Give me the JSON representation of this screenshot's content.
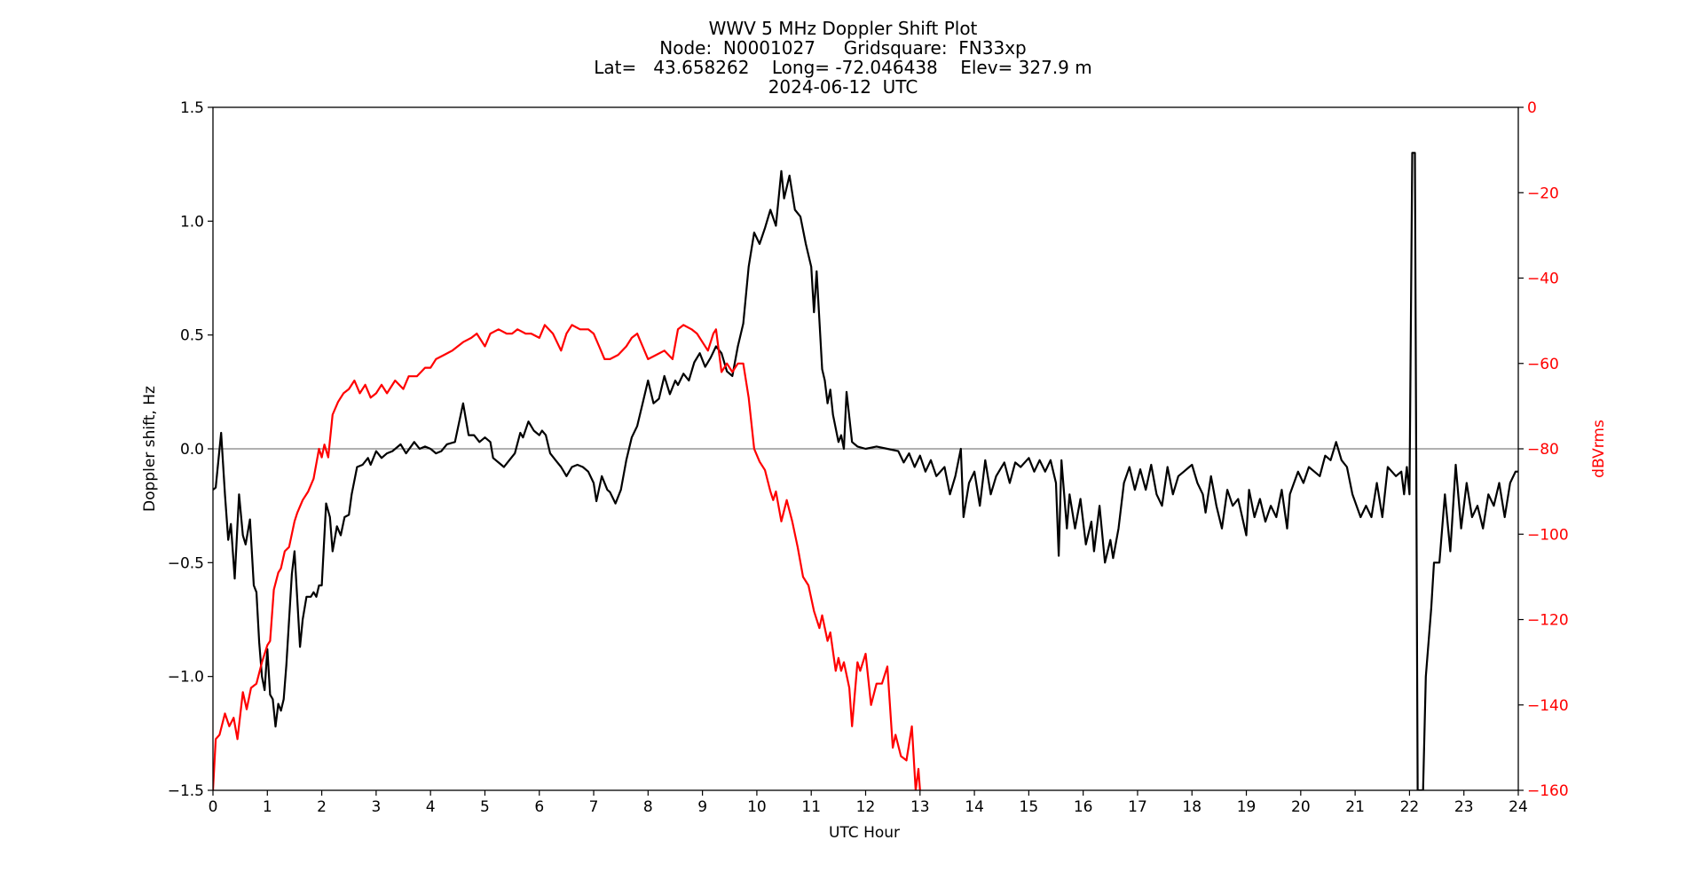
{
  "title": {
    "line1": "WWV 5 MHz Doppler Shift Plot",
    "line2": "Node:  N0001027     Gridsquare:  FN33xp",
    "line3": "Lat=   43.658262    Long= -72.046438    Elev= 327.9 m",
    "line4": "2024-06-12  UTC"
  },
  "axes": {
    "xlabel": "UTC Hour",
    "ylabel_left": "Doppler shift, Hz",
    "ylabel_right": "dBVrms",
    "right_color": "#ff0000",
    "left_color": "#000000",
    "zero_line_color": "#808080"
  },
  "chart_data": {
    "type": "line",
    "title": "WWV 5 MHz Doppler Shift Plot — Node: N0001027  Gridsquare: FN33xp  Lat= 43.658262  Long= -72.046438  Elev= 327.9 m  2024-06-12 UTC",
    "xlabel": "UTC Hour",
    "ylabel": "Doppler shift, Hz",
    "y2label": "dBVrms",
    "xlim": [
      0,
      24
    ],
    "ylim": [
      -1.5,
      1.5
    ],
    "y2lim": [
      -160,
      0
    ],
    "xticks": [
      "0",
      "1",
      "2",
      "3",
      "4",
      "5",
      "6",
      "7",
      "8",
      "9",
      "10",
      "11",
      "12",
      "13",
      "14",
      "15",
      "16",
      "17",
      "18",
      "19",
      "20",
      "21",
      "22",
      "23",
      "24"
    ],
    "yticks": [
      "1.5",
      "1.0",
      "0.5",
      "0.0",
      "−0.5",
      "−1.0",
      "−1.5"
    ],
    "ytick_values": [
      1.5,
      1.0,
      0.5,
      0.0,
      -0.5,
      -1.0,
      -1.5
    ],
    "y2ticks": [
      "0",
      "−20",
      "−40",
      "−60",
      "−80",
      "−100",
      "−120",
      "−140",
      "−160"
    ],
    "y2tick_values": [
      0,
      -20,
      -40,
      -60,
      -80,
      -100,
      -120,
      -140,
      -160
    ],
    "grid": false,
    "legend": null,
    "hline": {
      "y": 0.0,
      "color": "#808080"
    },
    "series": [
      {
        "name": "Doppler shift, Hz",
        "axis": "left",
        "color": "#000000",
        "x": [
          0.0,
          0.05,
          0.15,
          0.22,
          0.28,
          0.33,
          0.4,
          0.48,
          0.55,
          0.6,
          0.68,
          0.75,
          0.8,
          0.85,
          0.9,
          0.95,
          1.0,
          1.05,
          1.1,
          1.15,
          1.2,
          1.25,
          1.3,
          1.35,
          1.45,
          1.5,
          1.6,
          1.65,
          1.72,
          1.8,
          1.85,
          1.9,
          1.95,
          2.0,
          2.08,
          2.15,
          2.2,
          2.28,
          2.35,
          2.42,
          2.5,
          2.55,
          2.65,
          2.75,
          2.85,
          2.9,
          3.0,
          3.1,
          3.2,
          3.3,
          3.45,
          3.55,
          3.7,
          3.8,
          3.9,
          4.0,
          4.1,
          4.2,
          4.3,
          4.45,
          4.6,
          4.7,
          4.8,
          4.9,
          5.0,
          5.1,
          5.15,
          5.25,
          5.35,
          5.45,
          5.55,
          5.65,
          5.7,
          5.8,
          5.9,
          6.0,
          6.05,
          6.12,
          6.2,
          6.3,
          6.4,
          6.5,
          6.6,
          6.7,
          6.8,
          6.9,
          7.0,
          7.05,
          7.15,
          7.25,
          7.3,
          7.4,
          7.5,
          7.6,
          7.7,
          7.8,
          7.9,
          8.0,
          8.1,
          8.2,
          8.3,
          8.4,
          8.5,
          8.55,
          8.65,
          8.75,
          8.85,
          8.95,
          9.05,
          9.15,
          9.25,
          9.35,
          9.45,
          9.55,
          9.65,
          9.75,
          9.85,
          9.95,
          10.05,
          10.15,
          10.25,
          10.35,
          10.45,
          10.5,
          10.6,
          10.7,
          10.8,
          10.9,
          11.0,
          11.05,
          11.1,
          11.2,
          11.25,
          11.3,
          11.35,
          11.4,
          11.5,
          11.55,
          11.6,
          11.65,
          11.75,
          11.85,
          12.0,
          12.2,
          12.4,
          12.6,
          12.7,
          12.8,
          12.9,
          13.0,
          13.1,
          13.2,
          13.3,
          13.45,
          13.55,
          13.65,
          13.75,
          13.8,
          13.9,
          14.0,
          14.1,
          14.2,
          14.3,
          14.4,
          14.55,
          14.65,
          14.75,
          14.85,
          15.0,
          15.1,
          15.2,
          15.3,
          15.4,
          15.5,
          15.55,
          15.6,
          15.7,
          15.75,
          15.85,
          15.95,
          16.05,
          16.15,
          16.2,
          16.3,
          16.4,
          16.5,
          16.55,
          16.65,
          16.75,
          16.85,
          16.95,
          17.05,
          17.15,
          17.25,
          17.35,
          17.45,
          17.55,
          17.65,
          17.75,
          17.85,
          17.95,
          18.0,
          18.1,
          18.2,
          18.25,
          18.35,
          18.45,
          18.55,
          18.65,
          18.75,
          18.85,
          19.0,
          19.05,
          19.15,
          19.25,
          19.35,
          19.45,
          19.55,
          19.65,
          19.75,
          19.8,
          19.95,
          20.05,
          20.15,
          20.25,
          20.35,
          20.45,
          20.55,
          20.65,
          20.75,
          20.85,
          20.95,
          21.1,
          21.2,
          21.3,
          21.4,
          21.5,
          21.6,
          21.75,
          21.85,
          21.9,
          21.95,
          22.0,
          22.05,
          22.1,
          22.15,
          22.25,
          22.3,
          22.4,
          22.45,
          22.55,
          22.65,
          22.75,
          22.85,
          22.95,
          23.05,
          23.15,
          23.25,
          23.35,
          23.45,
          23.55,
          23.65,
          23.75,
          23.85,
          23.95,
          24.0
        ],
        "values": [
          -0.18,
          -0.17,
          0.07,
          -0.2,
          -0.4,
          -0.33,
          -0.57,
          -0.2,
          -0.38,
          -0.42,
          -0.31,
          -0.6,
          -0.63,
          -0.85,
          -1.0,
          -1.06,
          -0.88,
          -1.08,
          -1.1,
          -1.22,
          -1.12,
          -1.15,
          -1.1,
          -0.95,
          -0.55,
          -0.45,
          -0.87,
          -0.75,
          -0.65,
          -0.65,
          -0.63,
          -0.65,
          -0.6,
          -0.6,
          -0.24,
          -0.3,
          -0.45,
          -0.34,
          -0.38,
          -0.3,
          -0.29,
          -0.2,
          -0.08,
          -0.07,
          -0.04,
          -0.07,
          -0.01,
          -0.04,
          -0.02,
          -0.01,
          0.02,
          -0.02,
          0.03,
          0.0,
          0.01,
          0.0,
          -0.02,
          -0.01,
          0.02,
          0.03,
          0.2,
          0.06,
          0.06,
          0.03,
          0.05,
          0.03,
          -0.04,
          -0.06,
          -0.08,
          -0.05,
          -0.02,
          0.07,
          0.05,
          0.12,
          0.08,
          0.06,
          0.08,
          0.06,
          -0.02,
          -0.05,
          -0.08,
          -0.12,
          -0.08,
          -0.07,
          -0.08,
          -0.1,
          -0.15,
          -0.23,
          -0.12,
          -0.18,
          -0.19,
          -0.24,
          -0.18,
          -0.05,
          0.05,
          0.1,
          0.2,
          0.3,
          0.2,
          0.22,
          0.32,
          0.24,
          0.3,
          0.28,
          0.33,
          0.3,
          0.38,
          0.42,
          0.36,
          0.4,
          0.45,
          0.42,
          0.34,
          0.32,
          0.45,
          0.55,
          0.8,
          0.95,
          0.9,
          0.97,
          1.05,
          0.98,
          1.22,
          1.1,
          1.2,
          1.05,
          1.02,
          0.9,
          0.8,
          0.6,
          0.78,
          0.35,
          0.3,
          0.2,
          0.26,
          0.15,
          0.03,
          0.06,
          0.0,
          0.25,
          0.03,
          0.01,
          0.0,
          0.01,
          0.0,
          -0.01,
          -0.06,
          -0.02,
          -0.08,
          -0.03,
          -0.1,
          -0.05,
          -0.12,
          -0.08,
          -0.2,
          -0.12,
          0.0,
          -0.3,
          -0.15,
          -0.1,
          -0.25,
          -0.05,
          -0.2,
          -0.12,
          -0.06,
          -0.15,
          -0.06,
          -0.08,
          -0.04,
          -0.1,
          -0.05,
          -0.1,
          -0.05,
          -0.15,
          -0.47,
          -0.05,
          -0.35,
          -0.2,
          -0.35,
          -0.22,
          -0.42,
          -0.32,
          -0.45,
          -0.25,
          -0.5,
          -0.4,
          -0.48,
          -0.35,
          -0.15,
          -0.08,
          -0.18,
          -0.09,
          -0.18,
          -0.07,
          -0.2,
          -0.25,
          -0.08,
          -0.2,
          -0.12,
          -0.1,
          -0.08,
          -0.07,
          -0.15,
          -0.2,
          -0.28,
          -0.12,
          -0.25,
          -0.35,
          -0.18,
          -0.25,
          -0.22,
          -0.38,
          -0.18,
          -0.3,
          -0.22,
          -0.32,
          -0.25,
          -0.3,
          -0.18,
          -0.35,
          -0.2,
          -0.1,
          -0.15,
          -0.08,
          -0.1,
          -0.12,
          -0.03,
          -0.05,
          0.03,
          -0.05,
          -0.08,
          -0.2,
          -0.3,
          -0.25,
          -0.3,
          -0.15,
          -0.3,
          -0.08,
          -0.12,
          -0.1,
          -0.2,
          -0.08,
          -0.2,
          1.3,
          1.3,
          -1.5,
          -1.5,
          -1.0,
          -0.7,
          -0.5,
          -0.5,
          -0.2,
          -0.45,
          -0.07,
          -0.35,
          -0.15,
          -0.3,
          -0.25,
          -0.35,
          -0.2,
          -0.25,
          -0.15,
          -0.3,
          -0.15,
          -0.1,
          -0.1
        ]
      },
      {
        "name": "dBVrms",
        "axis": "right",
        "color": "#ff0000",
        "x": [
          0.0,
          0.05,
          0.12,
          0.22,
          0.3,
          0.38,
          0.45,
          0.55,
          0.62,
          0.7,
          0.8,
          0.9,
          1.0,
          1.05,
          1.12,
          1.2,
          1.25,
          1.32,
          1.4,
          1.5,
          1.55,
          1.65,
          1.75,
          1.85,
          1.95,
          2.0,
          2.05,
          2.12,
          2.2,
          2.3,
          2.4,
          2.5,
          2.6,
          2.7,
          2.8,
          2.9,
          3.0,
          3.1,
          3.2,
          3.35,
          3.5,
          3.6,
          3.75,
          3.9,
          4.0,
          4.1,
          4.25,
          4.4,
          4.5,
          4.6,
          4.75,
          4.85,
          5.0,
          5.1,
          5.25,
          5.4,
          5.5,
          5.6,
          5.75,
          5.85,
          6.0,
          6.1,
          6.25,
          6.4,
          6.5,
          6.6,
          6.75,
          6.9,
          7.0,
          7.1,
          7.2,
          7.3,
          7.45,
          7.6,
          7.7,
          7.8,
          7.9,
          8.0,
          8.15,
          8.3,
          8.45,
          8.55,
          8.65,
          8.8,
          8.9,
          9.0,
          9.1,
          9.2,
          9.25,
          9.35,
          9.45,
          9.55,
          9.65,
          9.75,
          9.85,
          9.95,
          10.05,
          10.15,
          10.25,
          10.3,
          10.35,
          10.45,
          10.55,
          10.65,
          10.75,
          10.85,
          10.95,
          11.05,
          11.15,
          11.2,
          11.3,
          11.35,
          11.45,
          11.5,
          11.55,
          11.6,
          11.7,
          11.75,
          11.85,
          11.9,
          12.0,
          12.1,
          12.2,
          12.3,
          12.4,
          12.5,
          12.55,
          12.65,
          12.75,
          12.85,
          12.92,
          12.97,
          13.0
        ],
        "values": [
          -160,
          -148,
          -147,
          -142,
          -145,
          -143,
          -148,
          -137,
          -141,
          -136,
          -135,
          -130,
          -126,
          -125,
          -113,
          -109,
          -108,
          -104,
          -103,
          -97,
          -95,
          -92,
          -90,
          -87,
          -80,
          -82,
          -79,
          -82,
          -72,
          -69,
          -67,
          -66,
          -64,
          -67,
          -65,
          -68,
          -67,
          -65,
          -67,
          -64,
          -66,
          -63,
          -63,
          -61,
          -61,
          -59,
          -58,
          -57,
          -56,
          -55,
          -54,
          -53,
          -56,
          -53,
          -52,
          -53,
          -53,
          -52,
          -53,
          -53,
          -54,
          -51,
          -53,
          -57,
          -53,
          -51,
          -52,
          -52,
          -53,
          -56,
          -59,
          -59,
          -58,
          -56,
          -54,
          -53,
          -56,
          -59,
          -58,
          -57,
          -59,
          -52,
          -51,
          -52,
          -53,
          -55,
          -57,
          -53,
          -52,
          -62,
          -60,
          -62,
          -60,
          -60,
          -68,
          -80,
          -83,
          -85,
          -90,
          -92,
          -90,
          -97,
          -92,
          -97,
          -103,
          -110,
          -112,
          -118,
          -122,
          -119,
          -125,
          -123,
          -132,
          -129,
          -132,
          -130,
          -136,
          -145,
          -130,
          -132,
          -128,
          -140,
          -135,
          -135,
          -131,
          -150,
          -147,
          -152,
          -153,
          -145,
          -160,
          -155,
          -160
        ]
      }
    ]
  }
}
